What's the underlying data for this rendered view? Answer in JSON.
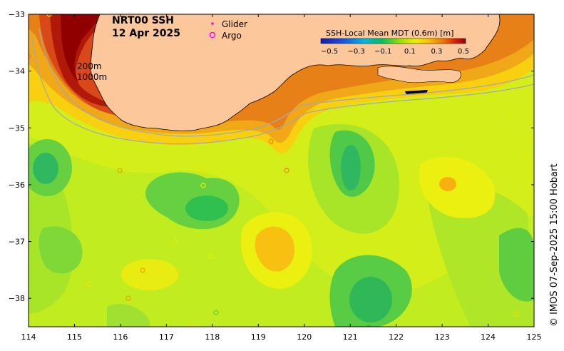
{
  "map": {
    "title_line1": "NRT00 SSH",
    "title_line2": "12 Apr 2025",
    "legend": {
      "glider_label": "Glider",
      "argo_label": "Argo"
    },
    "isobaths": {
      "shallow_label": "200m",
      "deep_label": "1000m"
    },
    "colorbar": {
      "title": "SSH-Local Mean MDT (0.6m) [m]",
      "ticks": [
        "−0.5",
        "−0.3",
        "−0.1",
        "0.1",
        "0.3",
        "0.5"
      ],
      "range": [
        -0.5,
        0.5
      ]
    },
    "axes": {
      "x_ticks": [
        "114",
        "115",
        "116",
        "117",
        "118",
        "119",
        "120",
        "121",
        "122",
        "123",
        "124",
        "125"
      ],
      "y_ticks": [
        "−33",
        "−34",
        "−35",
        "−36",
        "−37",
        "−38"
      ],
      "lon_range": [
        114,
        125
      ],
      "lat_range": [
        -33,
        -38.5
      ]
    },
    "credit": "© IMOS 07-Sep-2025 15:00 Hobart",
    "colors": {
      "land": "#fcc79b",
      "ocean_base": "#d0f018",
      "coast": "#000000",
      "isobath": "#a8a8a8",
      "argo": "#ff00ff",
      "glider": "#ff00ff"
    }
  }
}
